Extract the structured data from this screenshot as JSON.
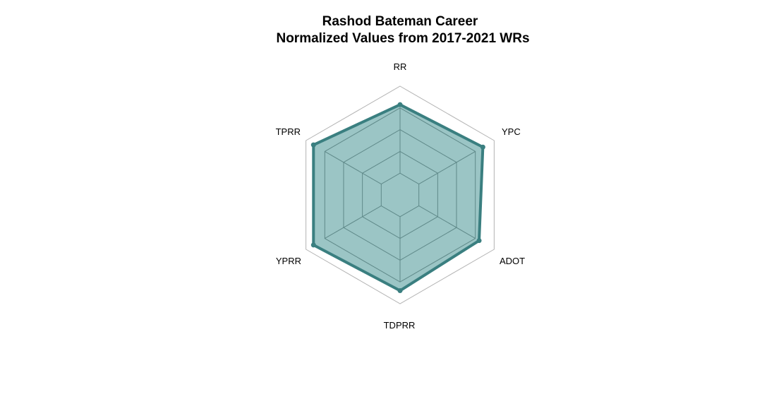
{
  "chart_data": {
    "type": "radar",
    "title": "Rashod Bateman Career",
    "subtitle": "Normalized Values from 2017-2021 WRs",
    "axes": [
      "RR",
      "YPC",
      "ADOT",
      "TDPRR",
      "YPRR",
      "TPRR"
    ],
    "values": [
      0.83,
      0.88,
      0.84,
      0.88,
      0.92,
      0.92
    ],
    "range": [
      0,
      1
    ],
    "grid_levels": 5,
    "series_name": "Rashod Bateman Career",
    "fill_color": "#2e8585",
    "fill_opacity": 0.48,
    "line_color": "#3a7f80",
    "grid_color": "#8c8c8c"
  }
}
